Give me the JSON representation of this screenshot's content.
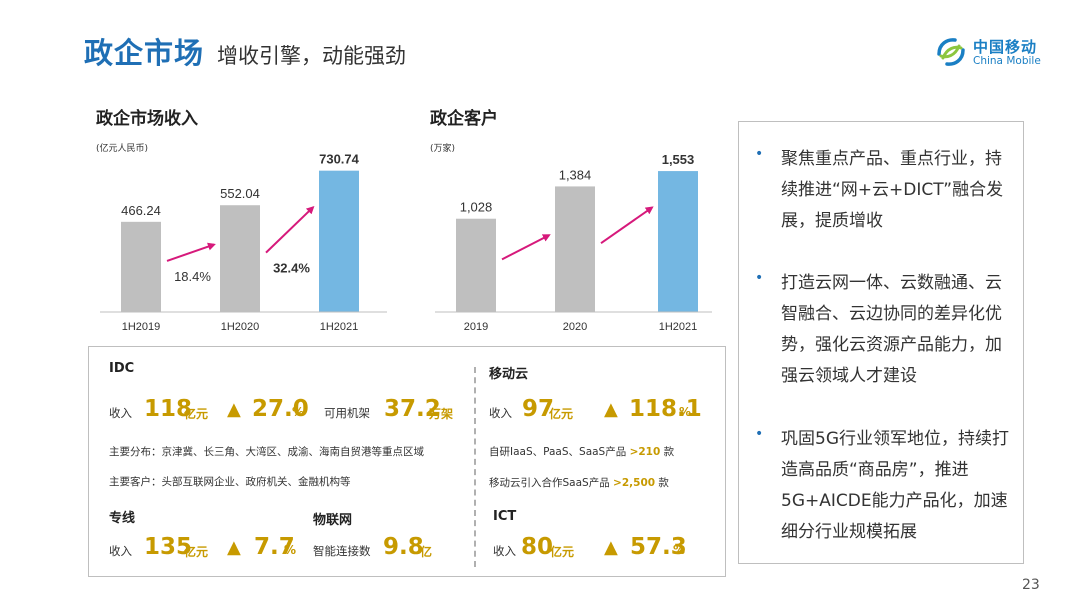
{
  "header": {
    "title": "政企市场",
    "subtitle": "增收引擎，动能强劲"
  },
  "logo": {
    "cn": "中国移动",
    "en": "China Mobile",
    "icon": "china-mobile-logo-icon"
  },
  "colors": {
    "title_blue": "#1f6fb5",
    "bar_gray": "#bfbfbf",
    "bar_blue": "#74b7e2",
    "arrow_magenta": "#d6197b",
    "accent_gold": "#c79a00"
  },
  "chart_data": [
    {
      "type": "bar",
      "title": "政企市场收入",
      "unit": "(亿元人民币)",
      "categories": [
        "1H2019",
        "1H2020",
        "1H2021"
      ],
      "values": [
        466.24,
        552.04,
        730.74
      ],
      "value_labels": [
        "466.24",
        "552.04",
        "730.74"
      ],
      "bar_colors": [
        "#bfbfbf",
        "#bfbfbf",
        "#74b7e2"
      ],
      "ylim": [
        0,
        760
      ],
      "growth": [
        {
          "from": 0,
          "to": 1,
          "label": "18.4%",
          "bold": false
        },
        {
          "from": 1,
          "to": 2,
          "label": "32.4%",
          "bold": true
        }
      ],
      "grid": false,
      "legend": "none"
    },
    {
      "type": "bar",
      "title": "政企客户",
      "unit": "(万家)",
      "categories": [
        "2019",
        "2020",
        "1H2021"
      ],
      "values": [
        1028,
        1384,
        1553
      ],
      "value_labels": [
        "1,028",
        "1,384",
        "1,553"
      ],
      "bar_colors": [
        "#bfbfbf",
        "#bfbfbf",
        "#74b7e2"
      ],
      "ylim": [
        0,
        1620
      ],
      "growth": [
        {
          "from": 0,
          "to": 1,
          "label": "",
          "bold": false
        },
        {
          "from": 1,
          "to": 2,
          "label": "",
          "bold": false
        }
      ],
      "grid": false,
      "legend": "none"
    }
  ],
  "bullets": [
    "聚焦重点产品、重点行业，持续推进“网+云+DICT”融合发展，提质增收",
    "打造云网一体、云数融通、云智融合、云边协同的差异化优势，强化云资源产品能力，加强云领域人才建设",
    "巩固5G行业领军地位，持续打造高品质“商品房”，推进5G+AICDE能力产品化，加速细分行业规模拓展"
  ],
  "idc": {
    "title": "IDC",
    "revenue_label": "收入",
    "revenue_value": "118",
    "revenue_unit": "亿元",
    "growth_icon": "triangle-up-icon",
    "growth_value": "27.0",
    "growth_unit": "%",
    "racks_label": "可用机架",
    "racks_value": "37.2",
    "racks_unit": "万架",
    "distribution": "主要分布：京津冀、长三角、大湾区、成渝、海南自贸港等重点区域",
    "customers": "主要客户：头部互联网企业、政府机关、金融机构等"
  },
  "mobile_cloud": {
    "title": "移动云",
    "revenue_label": "收入",
    "revenue_value": "97",
    "revenue_unit": "亿元",
    "growth_value": "118.1",
    "growth_unit": "%",
    "self_dev_text": "自研IaaS、PaaS、SaaS产品",
    "self_dev_value": ">210",
    "self_dev_unit": "款",
    "partner_text": "移动云引入合作SaaS产品",
    "partner_value": ">2,500",
    "partner_unit": "款"
  },
  "private_line": {
    "title": "专线",
    "revenue_label": "收入",
    "revenue_value": "135",
    "revenue_unit": "亿元",
    "growth_value": "7.7",
    "growth_unit": "%"
  },
  "iot": {
    "title": "物联网",
    "conn_label": "智能连接数",
    "conn_value": "9.8",
    "conn_unit": "亿"
  },
  "ict": {
    "title": "ICT",
    "revenue_label": "收入",
    "revenue_value": "80",
    "revenue_unit": "亿元",
    "growth_value": "57.3",
    "growth_unit": "%"
  },
  "page_number": "23"
}
